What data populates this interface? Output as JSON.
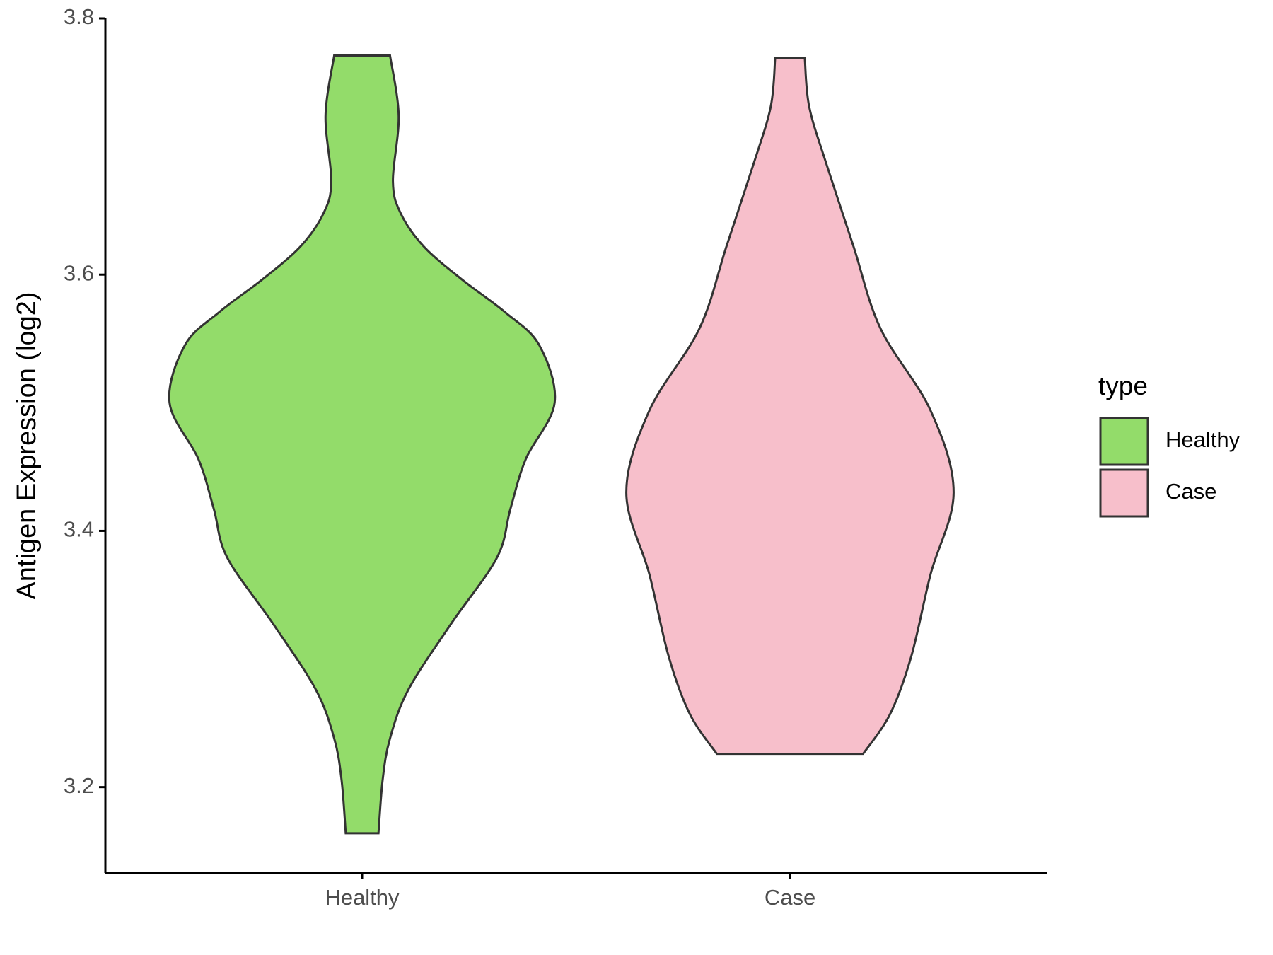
{
  "chart_data": {
    "type": "violin",
    "y_label": "Antigen Expression (log2)",
    "legend_title": "type",
    "categories": [
      "Healthy",
      "Case"
    ],
    "ylim": [
      3.133,
      3.8
    ],
    "yticks": [
      3.2,
      3.4,
      3.6,
      3.8
    ],
    "series": [
      {
        "name": "Healthy",
        "color": "#93dc6a",
        "y": [
          3.771,
          3.724,
          3.673,
          3.648,
          3.622,
          3.596,
          3.571,
          3.545,
          3.5,
          3.456,
          3.417,
          3.379,
          3.327,
          3.276,
          3.238,
          3.206,
          3.164
        ],
        "density": [
          0.145,
          0.19,
          0.16,
          0.2,
          0.32,
          0.52,
          0.74,
          0.92,
          1.0,
          0.85,
          0.77,
          0.7,
          0.46,
          0.24,
          0.145,
          0.107,
          0.085
        ]
      },
      {
        "name": "Case",
        "color": "#f7bfcb",
        "y": [
          3.769,
          3.731,
          3.686,
          3.622,
          3.558,
          3.494,
          3.43,
          3.366,
          3.302,
          3.257,
          3.226
        ],
        "density": [
          0.077,
          0.1,
          0.19,
          0.33,
          0.47,
          0.73,
          0.85,
          0.73,
          0.63,
          0.52,
          0.38
        ]
      }
    ]
  }
}
